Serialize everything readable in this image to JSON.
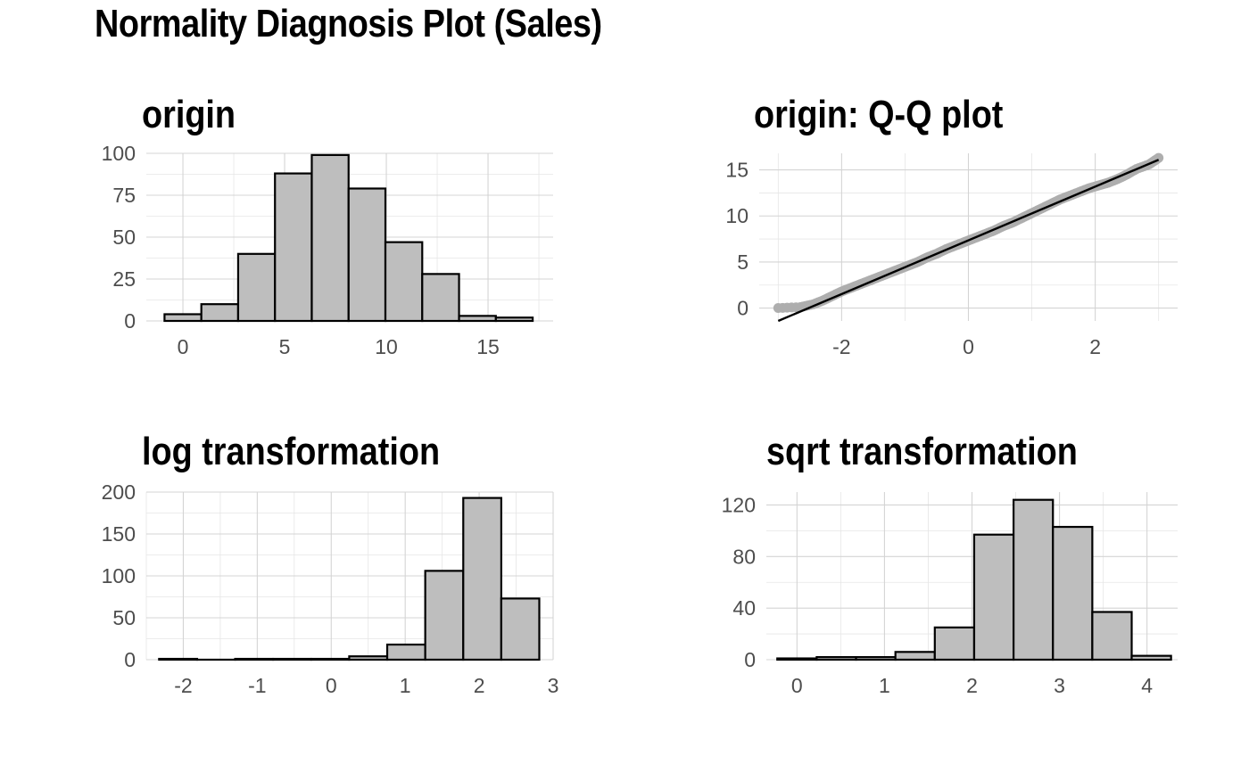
{
  "title": "Normality Diagnosis Plot (Sales)",
  "chart_data": [
    {
      "type": "bar",
      "subtype": "histogram",
      "title": "origin",
      "xlabel": "",
      "ylabel": "",
      "x_ticks": [
        0,
        5,
        10,
        15
      ],
      "y_ticks": [
        0,
        25,
        50,
        75,
        100
      ],
      "xlim": [
        -1.8,
        18.2
      ],
      "ylim": [
        0,
        100
      ],
      "bin_width": 1.81,
      "bins": [
        {
          "center": 0.0,
          "count": 4
        },
        {
          "center": 1.81,
          "count": 10
        },
        {
          "center": 3.62,
          "count": 40
        },
        {
          "center": 5.43,
          "count": 88
        },
        {
          "center": 7.24,
          "count": 99
        },
        {
          "center": 9.05,
          "count": 79
        },
        {
          "center": 10.86,
          "count": 47
        },
        {
          "center": 12.67,
          "count": 28
        },
        {
          "center": 14.48,
          "count": 3
        },
        {
          "center": 16.29,
          "count": 2
        }
      ],
      "grid": true
    },
    {
      "type": "scatter",
      "subtype": "qq",
      "title": "origin: Q-Q plot",
      "xlabel": "",
      "ylabel": "",
      "x_ticks": [
        -2,
        0,
        2
      ],
      "y_ticks": [
        0,
        5,
        10,
        15
      ],
      "xlim": [
        -3.3,
        3.3
      ],
      "ylim": [
        -1.4,
        16.8
      ],
      "reference_line": {
        "x": [
          -3.0,
          3.0
        ],
        "y": [
          -1.4,
          16.1
        ]
      },
      "points": [
        [
          -3.0,
          0.0
        ],
        [
          -2.65,
          0.1
        ],
        [
          -2.45,
          0.4
        ],
        [
          -2.3,
          0.8
        ],
        [
          -2.15,
          1.3
        ],
        [
          -2.0,
          1.8
        ],
        [
          -1.85,
          2.2
        ],
        [
          -1.7,
          2.6
        ],
        [
          -1.55,
          3.0
        ],
        [
          -1.4,
          3.4
        ],
        [
          -1.25,
          3.8
        ],
        [
          -1.1,
          4.2
        ],
        [
          -0.95,
          4.6
        ],
        [
          -0.8,
          5.0
        ],
        [
          -0.65,
          5.5
        ],
        [
          -0.5,
          5.9
        ],
        [
          -0.35,
          6.4
        ],
        [
          -0.2,
          6.8
        ],
        [
          -0.05,
          7.2
        ],
        [
          0.1,
          7.6
        ],
        [
          0.25,
          8.0
        ],
        [
          0.4,
          8.4
        ],
        [
          0.55,
          8.9
        ],
        [
          0.7,
          9.3
        ],
        [
          0.85,
          9.8
        ],
        [
          1.0,
          10.3
        ],
        [
          1.15,
          10.8
        ],
        [
          1.3,
          11.3
        ],
        [
          1.45,
          11.8
        ],
        [
          1.6,
          12.2
        ],
        [
          1.75,
          12.6
        ],
        [
          1.9,
          13.0
        ],
        [
          2.05,
          13.3
        ],
        [
          2.2,
          13.6
        ],
        [
          2.35,
          14.0
        ],
        [
          2.5,
          14.5
        ],
        [
          2.65,
          15.1
        ],
        [
          2.85,
          15.6
        ],
        [
          3.0,
          16.3
        ]
      ],
      "grid": true
    },
    {
      "type": "bar",
      "subtype": "histogram",
      "title": "log transformation",
      "xlabel": "",
      "ylabel": "",
      "x_ticks": [
        -2,
        -1,
        0,
        1,
        2,
        3
      ],
      "y_ticks": [
        0,
        50,
        100,
        150,
        200
      ],
      "xlim": [
        -2.5,
        3.0
      ],
      "ylim": [
        0,
        200
      ],
      "bin_width": 0.514,
      "bins": [
        {
          "center": -2.07,
          "count": 1
        },
        {
          "center": -1.556,
          "count": 0
        },
        {
          "center": -1.042,
          "count": 1
        },
        {
          "center": -0.528,
          "count": 1
        },
        {
          "center": -0.014,
          "count": 1
        },
        {
          "center": 0.5,
          "count": 4
        },
        {
          "center": 1.014,
          "count": 18
        },
        {
          "center": 1.528,
          "count": 106
        },
        {
          "center": 2.042,
          "count": 193
        },
        {
          "center": 2.556,
          "count": 73
        }
      ],
      "grid": true
    },
    {
      "type": "bar",
      "subtype": "histogram",
      "title": "sqrt transformation",
      "xlabel": "",
      "ylabel": "",
      "x_ticks": [
        0,
        1,
        2,
        3,
        4
      ],
      "y_ticks": [
        0,
        40,
        80,
        120
      ],
      "xlim": [
        -0.35,
        4.35
      ],
      "ylim": [
        0,
        130
      ],
      "bin_width": 0.45,
      "bins": [
        {
          "center": 0.0,
          "count": 1
        },
        {
          "center": 0.45,
          "count": 2
        },
        {
          "center": 0.9,
          "count": 2
        },
        {
          "center": 1.35,
          "count": 6
        },
        {
          "center": 1.8,
          "count": 25
        },
        {
          "center": 2.25,
          "count": 97
        },
        {
          "center": 2.7,
          "count": 124
        },
        {
          "center": 3.15,
          "count": 103
        },
        {
          "center": 3.6,
          "count": 37
        },
        {
          "center": 4.05,
          "count": 3
        }
      ],
      "grid": true
    }
  ]
}
